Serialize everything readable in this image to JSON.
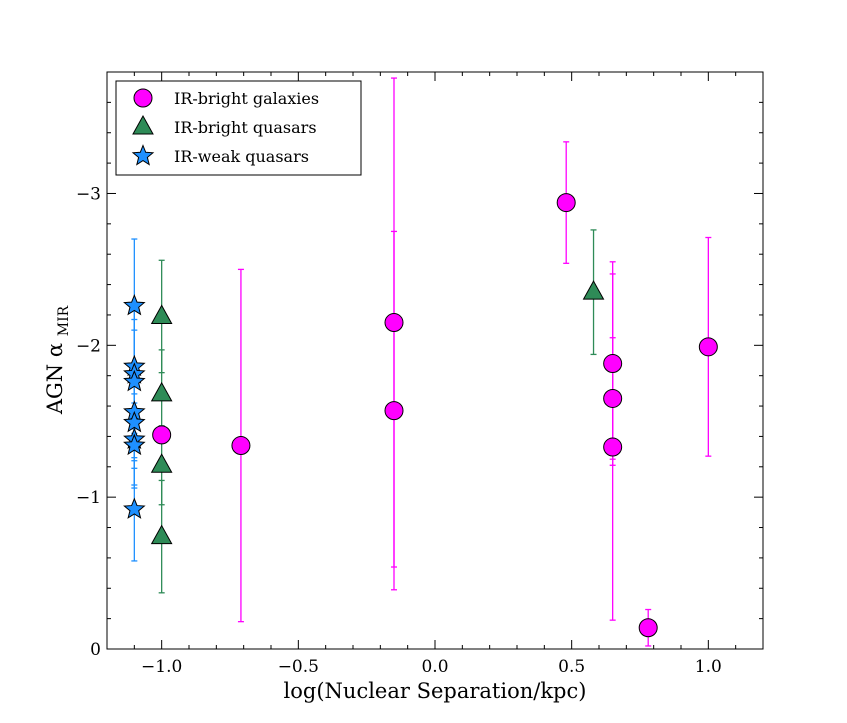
{
  "chart_data": {
    "type": "scatter",
    "xlabel": "log(Nuclear Separation/kpc)",
    "ylabel_main": "AGN α",
    "ylabel_sub": "MIR",
    "xlim": [
      -1.2,
      1.2
    ],
    "ylim": [
      0,
      -3.8
    ],
    "x_ticks": [
      {
        "value": -1.0,
        "label": "−1.0"
      },
      {
        "value": -0.5,
        "label": "−0.5"
      },
      {
        "value": 0.0,
        "label": "0.0"
      },
      {
        "value": 0.5,
        "label": "0.5"
      },
      {
        "value": 1.0,
        "label": "1.0"
      }
    ],
    "y_ticks": [
      {
        "value": 0,
        "label": "0"
      },
      {
        "value": -1,
        "label": "−1"
      },
      {
        "value": -2,
        "label": "−2"
      },
      {
        "value": -3,
        "label": "−3"
      }
    ],
    "legend": {
      "position": "top-left"
    },
    "series": [
      {
        "name": "IR-bright galaxies",
        "marker": "circle",
        "color": "#ff00ff",
        "edge": "#000000",
        "points": [
          {
            "x": -1.0,
            "y": -1.41,
            "err": 0.0
          },
          {
            "x": -0.71,
            "y": -1.34,
            "err": 1.16
          },
          {
            "x": -0.15,
            "y": -2.15,
            "err": 1.61
          },
          {
            "x": -0.15,
            "y": -1.57,
            "err": 1.18
          },
          {
            "x": 0.48,
            "y": -2.94,
            "err": 0.4
          },
          {
            "x": 0.65,
            "y": -1.88,
            "err": 0.67
          },
          {
            "x": 0.65,
            "y": -1.65,
            "err": 0.4
          },
          {
            "x": 0.65,
            "y": -1.33,
            "err": 1.14
          },
          {
            "x": 0.78,
            "y": -0.14,
            "err": 0.12
          },
          {
            "x": 1.0,
            "y": -1.99,
            "err": 0.72
          }
        ]
      },
      {
        "name": "IR-bright quasars",
        "marker": "triangle",
        "color": "#2e8b57",
        "edge": "#000000",
        "points": [
          {
            "x": -1.0,
            "y": -2.19,
            "err": 0.37
          },
          {
            "x": -1.0,
            "y": -1.68,
            "err": 0.29
          },
          {
            "x": -1.0,
            "y": -1.21,
            "err": 0.26
          },
          {
            "x": -1.0,
            "y": -0.74,
            "err": 0.37
          },
          {
            "x": 0.58,
            "y": -2.35,
            "err": 0.41
          }
        ]
      },
      {
        "name": "IR-weak quasars",
        "marker": "star",
        "color": "#1e90ff",
        "edge": "#000000",
        "points": [
          {
            "x": -1.1,
            "y": -2.26,
            "err": 0.44
          },
          {
            "x": -1.1,
            "y": -1.86,
            "err": 0.38
          },
          {
            "x": -1.1,
            "y": -1.81,
            "err": 0.36
          },
          {
            "x": -1.1,
            "y": -1.76,
            "err": 0.34
          },
          {
            "x": -1.1,
            "y": -1.56,
            "err": 0.32
          },
          {
            "x": -1.1,
            "y": -1.49,
            "err": 0.3
          },
          {
            "x": -1.1,
            "y": -1.38,
            "err": 0.3
          },
          {
            "x": -1.1,
            "y": -1.34,
            "err": 0.28
          },
          {
            "x": -1.1,
            "y": -0.92,
            "err": 0.34
          }
        ]
      }
    ]
  }
}
